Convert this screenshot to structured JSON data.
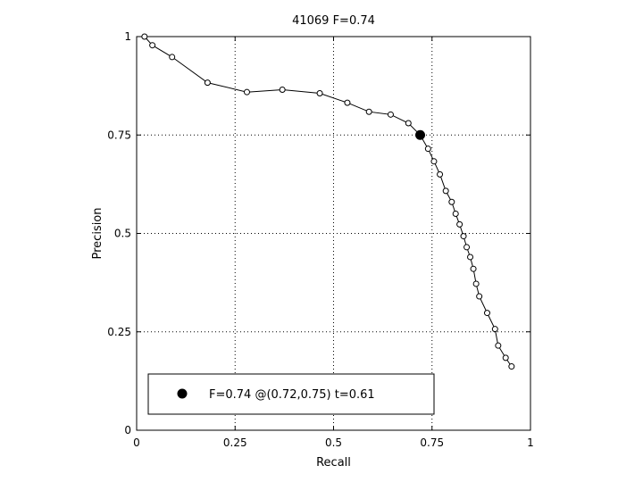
{
  "chart_data": {
    "type": "line",
    "title": "41069 F=0.74",
    "xlabel": "Recall",
    "ylabel": "Precision",
    "xlim": [
      0,
      1
    ],
    "ylim": [
      0,
      1
    ],
    "xticks": [
      0,
      0.25,
      0.5,
      0.75,
      1
    ],
    "xtick_labels": [
      "0",
      "0.25",
      "0.5",
      "0.75",
      "1"
    ],
    "yticks": [
      0,
      0.25,
      0.5,
      0.75,
      1
    ],
    "ytick_labels": [
      "0",
      "0.25",
      "0.5",
      "0.75",
      "1"
    ],
    "grid": true,
    "legend_position": "bottom-left",
    "series": [
      {
        "marker": "open-circle",
        "color": "#000000",
        "points": [
          [
            0.02,
            1.0
          ],
          [
            0.04,
            0.978
          ],
          [
            0.09,
            0.948
          ],
          [
            0.18,
            0.883
          ],
          [
            0.28,
            0.859
          ],
          [
            0.37,
            0.865
          ],
          [
            0.465,
            0.856
          ],
          [
            0.535,
            0.832
          ],
          [
            0.59,
            0.809
          ],
          [
            0.645,
            0.802
          ],
          [
            0.69,
            0.78
          ],
          [
            0.72,
            0.75
          ],
          [
            0.74,
            0.715
          ],
          [
            0.755,
            0.683
          ],
          [
            0.77,
            0.65
          ],
          [
            0.785,
            0.608
          ],
          [
            0.8,
            0.58
          ],
          [
            0.81,
            0.55
          ],
          [
            0.82,
            0.523
          ],
          [
            0.83,
            0.493
          ],
          [
            0.838,
            0.465
          ],
          [
            0.847,
            0.44
          ],
          [
            0.855,
            0.41
          ],
          [
            0.862,
            0.372
          ],
          [
            0.87,
            0.34
          ],
          [
            0.89,
            0.298
          ],
          [
            0.91,
            0.257
          ],
          [
            0.918,
            0.215
          ],
          [
            0.937,
            0.184
          ],
          [
            0.952,
            0.162
          ]
        ]
      }
    ],
    "highlight_point": {
      "x": 0.72,
      "y": 0.75,
      "marker": "filled-circle",
      "legend": "F=0.74 @(0.72,0.75) t=0.61"
    }
  }
}
